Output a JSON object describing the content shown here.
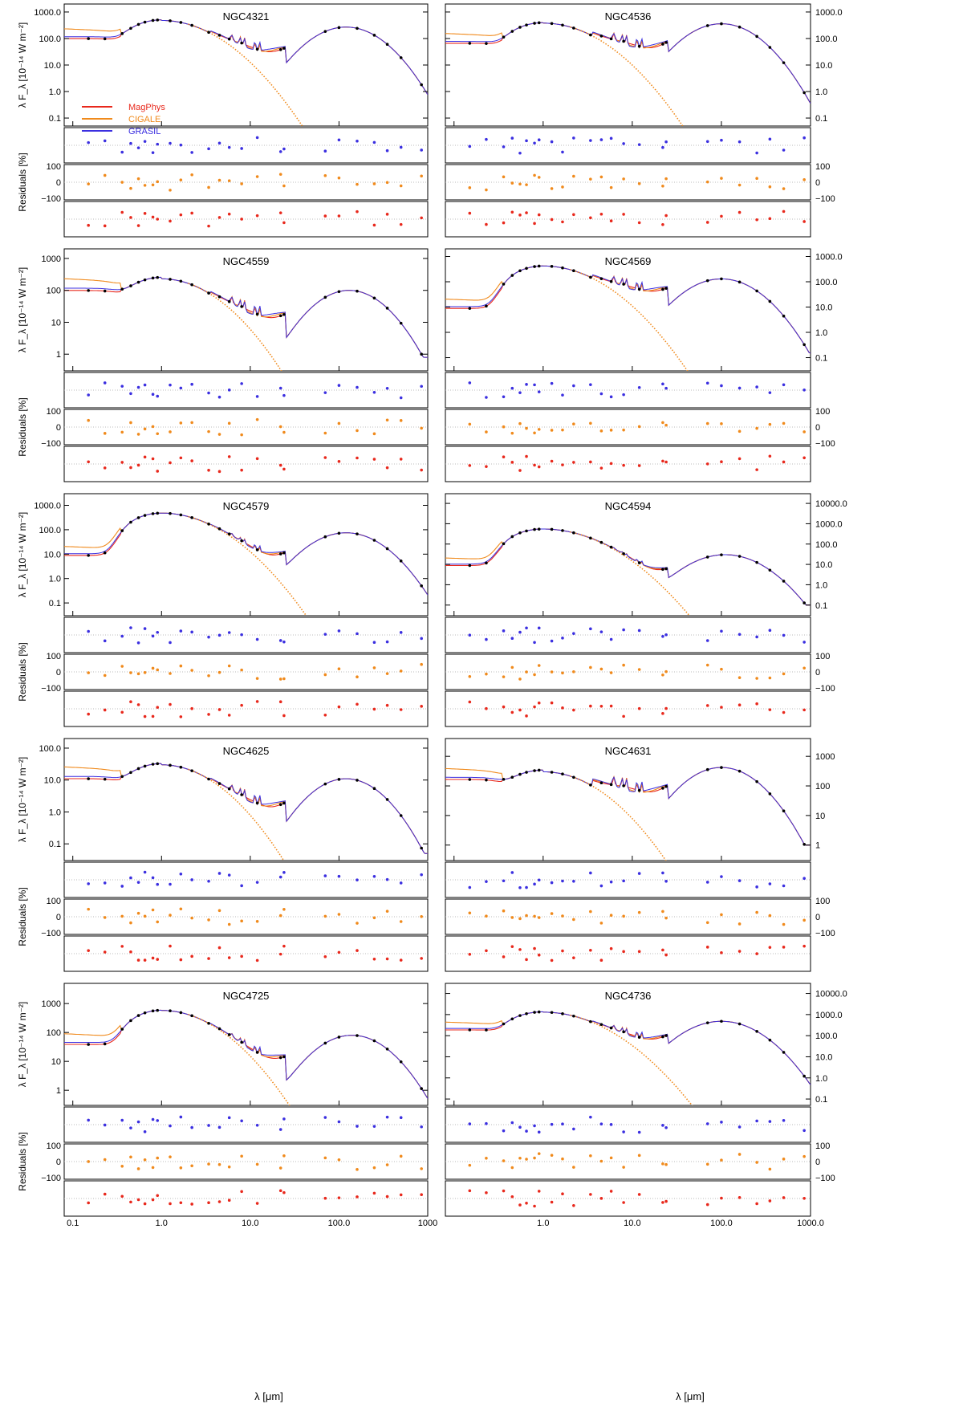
{
  "figure": {
    "x_axis_label": "λ [μm]",
    "residual_axis_label": "Residuals [%]",
    "residual_ticks": [
      "100",
      "0",
      "−100"
    ],
    "legend": [
      {
        "name": "MagPhys",
        "color": "#e8281c"
      },
      {
        "name": "CIGALE",
        "color": "#f08a1c"
      },
      {
        "name": "GRASIL",
        "color": "#3b2fe0"
      }
    ],
    "colors": {
      "magphys": "#e8281c",
      "cigale": "#f08a1c",
      "grasil": "#3b2fe0",
      "observed": "#000000"
    }
  },
  "chart_data": [
    {
      "type": "line",
      "title": "NGC4321",
      "xlabel": "λ [μm]",
      "ylabel": "λ F_λ [10⁻¹⁴ W m⁻²]",
      "xlim": [
        0.08,
        1000
      ],
      "ylim": [
        0.05,
        2000
      ],
      "axis_side": "left",
      "x_ticks": [
        "0.1",
        "1.0",
        "10.0",
        "100.0",
        "1000"
      ],
      "y_ticks": [
        {
          "value": 1000,
          "label": "1000.0"
        },
        {
          "value": 100,
          "label": "100.0"
        },
        {
          "value": 10,
          "label": "10.0"
        },
        {
          "value": 1,
          "label": "1.0"
        },
        {
          "value": 0.1,
          "label": "0.1"
        }
      ],
      "model": {
        "uv": 90,
        "stellar_peak": 480,
        "drop_at": 3,
        "pah_level": 40,
        "dust_peak": 270,
        "dust_lambda": 120,
        "end_value": 0.35
      },
      "series": [
        {
          "name": "MagPhys"
        },
        {
          "name": "CIGALE"
        },
        {
          "name": "GRASIL"
        }
      ]
    },
    {
      "type": "line",
      "title": "NGC4536",
      "xlabel": "λ [μm]",
      "ylabel": "λ F_λ [10⁻¹⁴ W m⁻²]",
      "xlim": [
        0.08,
        1000
      ],
      "ylim": [
        0.05,
        2000
      ],
      "axis_side": "right",
      "x_ticks": [
        "1.0",
        "10.0",
        "100.0",
        "1000.0"
      ],
      "y_ticks": [
        {
          "value": 1000,
          "label": "1000.0"
        },
        {
          "value": 100,
          "label": "100.0"
        },
        {
          "value": 10,
          "label": "10.0"
        },
        {
          "value": 1,
          "label": "1.0"
        },
        {
          "value": 0.1,
          "label": "0.1"
        }
      ],
      "model": {
        "uv": 60,
        "stellar_peak": 380,
        "drop_at": 3,
        "pah_level": 55,
        "dust_peak": 360,
        "dust_lambda": 100,
        "end_value": 0.3
      },
      "series": [
        {
          "name": "MagPhys"
        },
        {
          "name": "CIGALE"
        },
        {
          "name": "GRASIL"
        }
      ]
    },
    {
      "type": "line",
      "title": "NGC4559",
      "xlabel": "λ [μm]",
      "ylabel": "λ F_λ [10⁻¹⁴ W m⁻²]",
      "xlim": [
        0.08,
        1000
      ],
      "ylim": [
        0.3,
        2000
      ],
      "axis_side": "left",
      "x_ticks": [
        "0.1",
        "1.0",
        "10.0",
        "100.0",
        "1000"
      ],
      "y_ticks": [
        {
          "value": 1000,
          "label": "1000"
        },
        {
          "value": 100,
          "label": "100"
        },
        {
          "value": 10,
          "label": "10"
        },
        {
          "value": 1,
          "label": "1"
        }
      ],
      "model": {
        "uv": 90,
        "stellar_peak": 230,
        "drop_at": 3,
        "pah_level": 18,
        "dust_peak": 100,
        "dust_lambda": 130,
        "end_value": 0.8
      },
      "series": [
        {
          "name": "MagPhys"
        },
        {
          "name": "CIGALE"
        },
        {
          "name": "GRASIL"
        }
      ]
    },
    {
      "type": "line",
      "title": "NGC4569",
      "xlabel": "λ [μm]",
      "ylabel": "λ F_λ [10⁻¹⁴ W m⁻²]",
      "xlim": [
        0.08,
        1000
      ],
      "ylim": [
        0.03,
        2000
      ],
      "axis_side": "right",
      "x_ticks": [
        "1.0",
        "10.0",
        "100.0",
        "1000.0"
      ],
      "y_ticks": [
        {
          "value": 1000,
          "label": "1000.0"
        },
        {
          "value": 100,
          "label": "100.0"
        },
        {
          "value": 10,
          "label": "10.0"
        },
        {
          "value": 1,
          "label": "1.0"
        },
        {
          "value": 0.1,
          "label": "0.1"
        }
      ],
      "model": {
        "uv": 8,
        "stellar_peak": 420,
        "drop_at": 3,
        "pah_level": 55,
        "dust_peak": 130,
        "dust_lambda": 100,
        "end_value": 0.15
      },
      "series": [
        {
          "name": "MagPhys"
        },
        {
          "name": "CIGALE"
        },
        {
          "name": "GRASIL"
        }
      ]
    },
    {
      "type": "line",
      "title": "NGC4579",
      "xlabel": "λ [μm]",
      "ylabel": "λ F_λ [10⁻¹⁴ W m⁻²]",
      "xlim": [
        0.08,
        1000
      ],
      "ylim": [
        0.03,
        3000
      ],
      "axis_side": "left",
      "x_ticks": [
        "0.1",
        "1.0",
        "10.0",
        "100.0",
        "1000"
      ],
      "y_ticks": [
        {
          "value": 1000,
          "label": "1000.0"
        },
        {
          "value": 100,
          "label": "100.0"
        },
        {
          "value": 10,
          "label": "10.0"
        },
        {
          "value": 1,
          "label": "1.0"
        },
        {
          "value": 0.1,
          "label": "0.1"
        }
      ],
      "model": {
        "uv": 8,
        "stellar_peak": 480,
        "drop_at": 3,
        "pah_level": 10,
        "dust_peak": 75,
        "dust_lambda": 120,
        "end_value": 0.15
      },
      "series": [
        {
          "name": "MagPhys"
        },
        {
          "name": "CIGALE"
        },
        {
          "name": "GRASIL"
        }
      ]
    },
    {
      "type": "line",
      "title": "NGC4594",
      "xlabel": "λ [μm]",
      "ylabel": "λ F_λ [10⁻¹⁴ W m⁻²]",
      "xlim": [
        0.08,
        1000
      ],
      "ylim": [
        0.03,
        30000
      ],
      "axis_side": "right",
      "x_ticks": [
        "1.0",
        "10.0",
        "100.0",
        "1000.0"
      ],
      "y_ticks": [
        {
          "value": 10000,
          "label": "10000.0"
        },
        {
          "value": 1000,
          "label": "1000.0"
        },
        {
          "value": 100,
          "label": "100.0"
        },
        {
          "value": 10,
          "label": "10.0"
        },
        {
          "value": 1,
          "label": "1.0"
        },
        {
          "value": 0.1,
          "label": "0.1"
        }
      ],
      "model": {
        "uv": 8,
        "stellar_peak": 550,
        "drop_at": 3,
        "pah_level": 5,
        "dust_peak": 30,
        "dust_lambda": 110,
        "end_value": 0.1
      },
      "series": [
        {
          "name": "MagPhys"
        },
        {
          "name": "CIGALE"
        },
        {
          "name": "GRASIL"
        }
      ]
    },
    {
      "type": "line",
      "title": "NGC4625",
      "xlabel": "λ [μm]",
      "ylabel": "λ F_λ [10⁻¹⁴ W m⁻²]",
      "xlim": [
        0.08,
        1000
      ],
      "ylim": [
        0.03,
        200
      ],
      "axis_side": "left",
      "x_ticks": [
        "0.1",
        "1.0",
        "10.0",
        "100.0",
        "1000"
      ],
      "y_ticks": [
        {
          "value": 100,
          "label": "100.0"
        },
        {
          "value": 10,
          "label": "10.0"
        },
        {
          "value": 1,
          "label": "1.0"
        },
        {
          "value": 0.1,
          "label": "0.1"
        }
      ],
      "model": {
        "uv": 10,
        "stellar_peak": 30,
        "drop_at": 3,
        "pah_level": 1.8,
        "dust_peak": 11,
        "dust_lambda": 120,
        "end_value": 0.05
      },
      "series": [
        {
          "name": "MagPhys"
        },
        {
          "name": "CIGALE"
        },
        {
          "name": "GRASIL"
        }
      ]
    },
    {
      "type": "line",
      "title": "NGC4631",
      "xlabel": "λ [μm]",
      "ylabel": "λ F_λ [10⁻¹⁴ W m⁻²]",
      "xlim": [
        0.08,
        1000
      ],
      "ylim": [
        0.3,
        4000
      ],
      "axis_side": "right",
      "x_ticks": [
        "1.0",
        "10.0",
        "100.0",
        "1000.0"
      ],
      "y_ticks": [
        {
          "value": 1000,
          "label": "1000"
        },
        {
          "value": 100,
          "label": "100"
        },
        {
          "value": 10,
          "label": "10"
        },
        {
          "value": 1,
          "label": "1"
        }
      ],
      "model": {
        "uv": 150,
        "stellar_peak": 300,
        "drop_at": 3,
        "pah_level": 80,
        "dust_peak": 420,
        "dust_lambda": 100,
        "end_value": 1
      },
      "series": [
        {
          "name": "MagPhys"
        },
        {
          "name": "CIGALE"
        },
        {
          "name": "GRASIL"
        }
      ]
    },
    {
      "type": "line",
      "title": "NGC4725",
      "xlabel": "λ [μm]",
      "ylabel": "λ F_λ [10⁻¹⁴ W m⁻²]",
      "xlim": [
        0.08,
        1000
      ],
      "ylim": [
        0.3,
        5000
      ],
      "axis_side": "left",
      "x_ticks": [
        "0.1",
        "1.0",
        "10.0",
        "100.0",
        "1000"
      ],
      "y_ticks": [
        {
          "value": 1000,
          "label": "1000"
        },
        {
          "value": 100,
          "label": "100"
        },
        {
          "value": 10,
          "label": "10"
        },
        {
          "value": 1,
          "label": "1"
        }
      ],
      "model": {
        "uv": 35,
        "stellar_peak": 580,
        "drop_at": 3,
        "pah_level": 15,
        "dust_peak": 80,
        "dust_lambda": 140,
        "end_value": 0.5
      },
      "series": [
        {
          "name": "MagPhys"
        },
        {
          "name": "CIGALE"
        },
        {
          "name": "GRASIL"
        }
      ]
    },
    {
      "type": "line",
      "title": "NGC4736",
      "xlabel": "λ [μm]",
      "ylabel": "λ F_λ [10⁻¹⁴ W m⁻²]",
      "xlim": [
        0.08,
        1000
      ],
      "ylim": [
        0.05,
        30000
      ],
      "axis_side": "right",
      "x_ticks": [
        "1.0",
        "10.0",
        "100.0",
        "1000.0"
      ],
      "y_ticks": [
        {
          "value": 10000,
          "label": "10000.0"
        },
        {
          "value": 1000,
          "label": "1000.0"
        },
        {
          "value": 100,
          "label": "100.0"
        },
        {
          "value": 10,
          "label": "10.0"
        },
        {
          "value": 1,
          "label": "1.0"
        },
        {
          "value": 0.1,
          "label": "0.1"
        }
      ],
      "model": {
        "uv": 170,
        "stellar_peak": 1300,
        "drop_at": 3,
        "pah_level": 80,
        "dust_peak": 480,
        "dust_lambda": 100,
        "end_value": 0.3
      },
      "series": [
        {
          "name": "MagPhys"
        },
        {
          "name": "CIGALE"
        },
        {
          "name": "GRASIL"
        }
      ]
    }
  ]
}
